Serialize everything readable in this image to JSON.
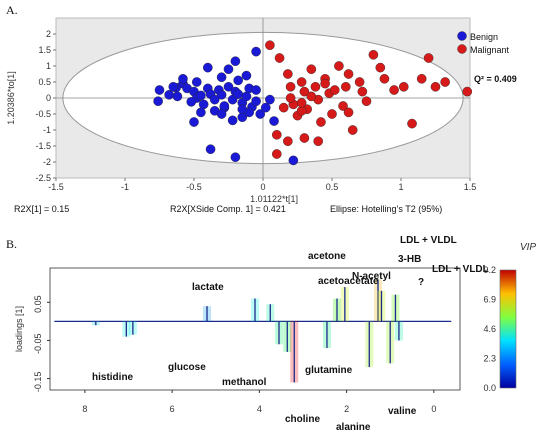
{
  "chart_data": [
    {
      "type": "scatter",
      "panel_label": "A.",
      "xlabel": "1.01122*t[1]",
      "ylabel": "1.20386*to[1]",
      "xlim": [
        -1.5,
        1.5
      ],
      "ylim": [
        -2.5,
        2.5
      ],
      "x_ticks": [
        "-1.5",
        "-1",
        "-0.5",
        "0",
        "0.5",
        "1",
        "1.5"
      ],
      "y_ticks": [
        "2",
        "1.5",
        "1",
        "0.5",
        "0",
        "-0.5",
        "-1",
        "-1.5",
        "-2",
        "-2.5"
      ],
      "legend_placement": "top-right",
      "q2_label": "Q² = 0.409",
      "footer_left": "R2X[1] = 0.15",
      "footer_mid": "R2X[XSide Comp. 1] = 0.421",
      "footer_right": "Ellipse: Hotelling’s T2 (95%)",
      "colors": {
        "Benign": "#1a1ad6",
        "Malignant": "#d61a1a",
        "plot_bg": "#e9e9e9"
      },
      "series": [
        {
          "name": "Benign",
          "points": [
            [
              -0.75,
              0.25
            ],
            [
              -0.68,
              0.1
            ],
            [
              -0.63,
              0.32
            ],
            [
              -0.58,
              0.45
            ],
            [
              -0.55,
              0.3
            ],
            [
              -0.5,
              0.2
            ],
            [
              -0.62,
              0.05
            ],
            [
              -0.48,
              0.0
            ],
            [
              -0.52,
              -0.12
            ],
            [
              -0.45,
              0.08
            ],
            [
              -0.43,
              -0.2
            ],
            [
              -0.4,
              0.3
            ],
            [
              -0.38,
              0.12
            ],
            [
              -0.35,
              -0.05
            ],
            [
              -0.32,
              0.25
            ],
            [
              -0.3,
              0.1
            ],
            [
              -0.28,
              -0.3
            ],
            [
              -0.25,
              0.35
            ],
            [
              -0.22,
              -0.05
            ],
            [
              -0.2,
              0.2
            ],
            [
              -0.18,
              0.12
            ],
            [
              -0.15,
              -0.15
            ],
            [
              -0.12,
              0.05
            ],
            [
              -0.1,
              0.3
            ],
            [
              -0.08,
              -0.28
            ],
            [
              -0.05,
              -0.1
            ],
            [
              -0.02,
              -0.5
            ],
            [
              0.02,
              -0.3
            ],
            [
              -0.4,
              0.95
            ],
            [
              -0.3,
              0.65
            ],
            [
              -0.25,
              0.9
            ],
            [
              -0.18,
              0.55
            ],
            [
              -0.12,
              0.7
            ],
            [
              -0.05,
              1.45
            ],
            [
              -0.2,
              1.15
            ],
            [
              -0.15,
              -0.6
            ],
            [
              -0.35,
              -0.4
            ],
            [
              -0.28,
              -0.25
            ],
            [
              -0.45,
              -0.45
            ],
            [
              -0.5,
              -0.75
            ],
            [
              -0.3,
              -0.5
            ],
            [
              -0.22,
              -0.7
            ],
            [
              -0.1,
              -0.45
            ],
            [
              0.05,
              -0.05
            ],
            [
              0.08,
              -0.72
            ],
            [
              -0.58,
              0.6
            ],
            [
              -0.48,
              0.5
            ],
            [
              -0.65,
              0.35
            ],
            [
              -0.76,
              -0.1
            ],
            [
              -0.38,
              -1.6
            ],
            [
              -0.2,
              -1.85
            ],
            [
              0.22,
              -1.95
            ],
            [
              -0.15,
              -0.35
            ],
            [
              -0.05,
              0.25
            ]
          ]
        },
        {
          "name": "Malignant",
          "points": [
            [
              0.05,
              1.65
            ],
            [
              0.12,
              1.25
            ],
            [
              0.18,
              0.75
            ],
            [
              0.2,
              0.35
            ],
            [
              0.22,
              -0.2
            ],
            [
              0.25,
              -0.55
            ],
            [
              0.28,
              0.5
            ],
            [
              0.3,
              0.2
            ],
            [
              0.32,
              -0.35
            ],
            [
              0.35,
              0.9
            ],
            [
              0.38,
              0.35
            ],
            [
              0.4,
              -0.05
            ],
            [
              0.42,
              -0.75
            ],
            [
              0.45,
              0.6
            ],
            [
              0.48,
              0.15
            ],
            [
              0.5,
              -0.5
            ],
            [
              0.52,
              0.25
            ],
            [
              0.55,
              1.0
            ],
            [
              0.58,
              -0.25
            ],
            [
              0.6,
              0.35
            ],
            [
              0.65,
              -1.0
            ],
            [
              0.7,
              0.5
            ],
            [
              0.75,
              -0.1
            ],
            [
              0.8,
              1.35
            ],
            [
              0.85,
              0.95
            ],
            [
              0.88,
              0.6
            ],
            [
              0.95,
              0.25
            ],
            [
              1.02,
              0.35
            ],
            [
              1.08,
              -0.8
            ],
            [
              1.15,
              0.6
            ],
            [
              1.25,
              0.35
            ],
            [
              1.32,
              0.5
            ],
            [
              1.48,
              0.2
            ],
            [
              1.2,
              1.25
            ],
            [
              0.62,
              -0.45
            ],
            [
              0.28,
              -0.4
            ],
            [
              0.15,
              -0.3
            ],
            [
              0.1,
              -1.15
            ],
            [
              0.18,
              -1.35
            ],
            [
              0.3,
              -1.25
            ],
            [
              0.4,
              -1.35
            ],
            [
              0.1,
              -1.75
            ],
            [
              0.2,
              0.0
            ],
            [
              0.35,
              0.05
            ],
            [
              0.45,
              0.45
            ],
            [
              0.62,
              0.75
            ],
            [
              0.72,
              0.2
            ],
            [
              0.28,
              -0.15
            ]
          ]
        }
      ]
    },
    {
      "type": "line",
      "panel_label": "B.",
      "xlabel": "",
      "ylabel": "loadings [1]",
      "xlim": [
        8.8,
        -0.6
      ],
      "ylim": [
        -0.18,
        0.14
      ],
      "x_ticks": [
        "8",
        "6",
        "4",
        "2",
        "0"
      ],
      "y_ticks": [
        "0.05",
        "-0.05",
        "-0.15"
      ],
      "colorbar": {
        "title": "VIP",
        "ticks": [
          "9.2",
          "6.9",
          "4.6",
          "2.3",
          "0.0"
        ]
      },
      "annotations": [
        {
          "text": "lactate",
          "ppm": 4.1
        },
        {
          "text": "acetone",
          "ppm": 2.22
        },
        {
          "text": "N-acetyl",
          "ppm": 2.04
        },
        {
          "text": "acetoacetate",
          "ppm": 2.28
        },
        {
          "text": "LDL + VLDL",
          "ppm": 1.28
        },
        {
          "text": "3-HB",
          "ppm": 1.2
        },
        {
          "text": "LDL + VLDL",
          "ppm": 0.88
        },
        {
          "text": "?",
          "ppm": 0.85
        },
        {
          "text": "histidine",
          "ppm": 7.2
        },
        {
          "text": "glucose",
          "ppm": 5.23
        },
        {
          "text": "methanol",
          "ppm": 3.36
        },
        {
          "text": "glutamine",
          "ppm": 2.45
        },
        {
          "text": "choline",
          "ppm": 3.2
        },
        {
          "text": "alanine",
          "ppm": 1.48
        },
        {
          "text": "valine",
          "ppm": 1.0
        }
      ],
      "peaks": [
        {
          "ppm": 7.75,
          "value": -0.01,
          "vip": 2.0
        },
        {
          "ppm": 7.05,
          "value": -0.04,
          "vip": 2.5
        },
        {
          "ppm": 6.9,
          "value": -0.035,
          "vip": 2.5
        },
        {
          "ppm": 5.2,
          "value": 0.04,
          "vip": 1.5
        },
        {
          "ppm": 4.1,
          "value": 0.06,
          "vip": 2.5
        },
        {
          "ppm": 3.75,
          "value": 0.045,
          "vip": 3.0
        },
        {
          "ppm": 3.55,
          "value": -0.06,
          "vip": 3.5
        },
        {
          "ppm": 3.36,
          "value": -0.08,
          "vip": 4.0
        },
        {
          "ppm": 3.2,
          "value": -0.16,
          "vip": 9.2
        },
        {
          "ppm": 2.45,
          "value": -0.07,
          "vip": 3.5
        },
        {
          "ppm": 2.22,
          "value": 0.06,
          "vip": 5.0
        },
        {
          "ppm": 2.04,
          "value": 0.09,
          "vip": 6.5
        },
        {
          "ppm": 1.48,
          "value": -0.12,
          "vip": 6.0
        },
        {
          "ppm": 1.28,
          "value": 0.11,
          "vip": 7.5
        },
        {
          "ppm": 1.2,
          "value": 0.08,
          "vip": 6.5
        },
        {
          "ppm": 1.0,
          "value": -0.11,
          "vip": 6.0
        },
        {
          "ppm": 0.88,
          "value": 0.07,
          "vip": 5.5
        },
        {
          "ppm": 0.8,
          "value": -0.05,
          "vip": 3.0
        }
      ]
    }
  ]
}
